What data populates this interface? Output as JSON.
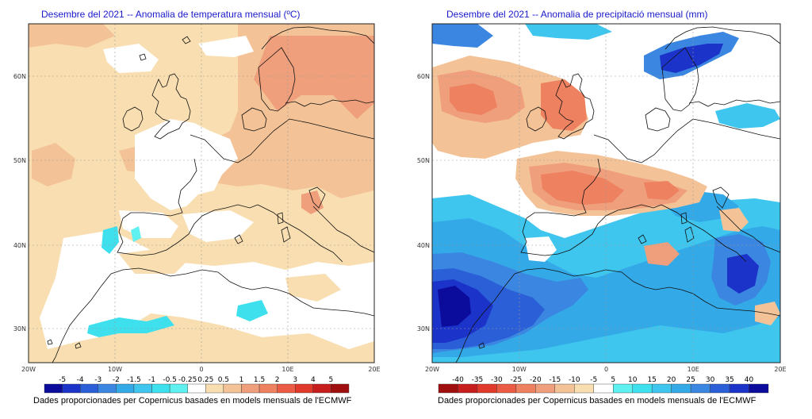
{
  "maps": [
    {
      "title": "Desembre del 2021 -- Anomalia de temperatura mensual (ºC)",
      "variable": "temperature",
      "lat_labels": [
        "60N",
        "50N",
        "40N",
        "30N"
      ],
      "lon_labels": [
        "20W",
        "10W",
        "0",
        "10E",
        "20E"
      ],
      "colorbar": {
        "labels": [
          "-5",
          "-4",
          "-3",
          "-2",
          "-1.5",
          "-1",
          "-0.5",
          "-0.25",
          "0.25",
          "0.5",
          "1",
          "1.5",
          "2",
          "3",
          "4",
          "5"
        ],
        "colors": [
          "#0b0b9c",
          "#1c33c9",
          "#2b5fd8",
          "#3b86e0",
          "#34a9e8",
          "#3ec6ee",
          "#3ee0ee",
          "#5ff0f0",
          "#ffffff",
          "#f8deb0",
          "#f3c397",
          "#ef9f7c",
          "#ee8160",
          "#ec5c45",
          "#e23a2a",
          "#c81d1d",
          "#a00f0f"
        ]
      },
      "credit": "Dades proporcionades per Copernicus basades en models mensuals de l'ECMWF"
    },
    {
      "title": "Desembre del 2021 -- Anomalia de precipitació mensual (mm)",
      "variable": "precipitation",
      "lat_labels": [
        "60N",
        "50N",
        "40N",
        "30N"
      ],
      "lon_labels": [
        "20W",
        "10W",
        "0",
        "10E",
        "20E"
      ],
      "colorbar": {
        "labels": [
          "-40",
          "-35",
          "-30",
          "-25",
          "-20",
          "-15",
          "-10",
          "-5",
          "5",
          "10",
          "15",
          "20",
          "25",
          "30",
          "35",
          "40"
        ],
        "colors": [
          "#a00f0f",
          "#c81d1d",
          "#e23a2a",
          "#ec5c45",
          "#ee8160",
          "#ef9f7c",
          "#f3c397",
          "#f8deb0",
          "#ffffff",
          "#5ff0f0",
          "#3ee0ee",
          "#3ec6ee",
          "#34a9e8",
          "#3b86e0",
          "#2b5fd8",
          "#1c33c9",
          "#0b0b9c"
        ]
      },
      "credit": "Dades proporcionades per Copernicus basades en models mensuals de l'ECMWF"
    }
  ]
}
